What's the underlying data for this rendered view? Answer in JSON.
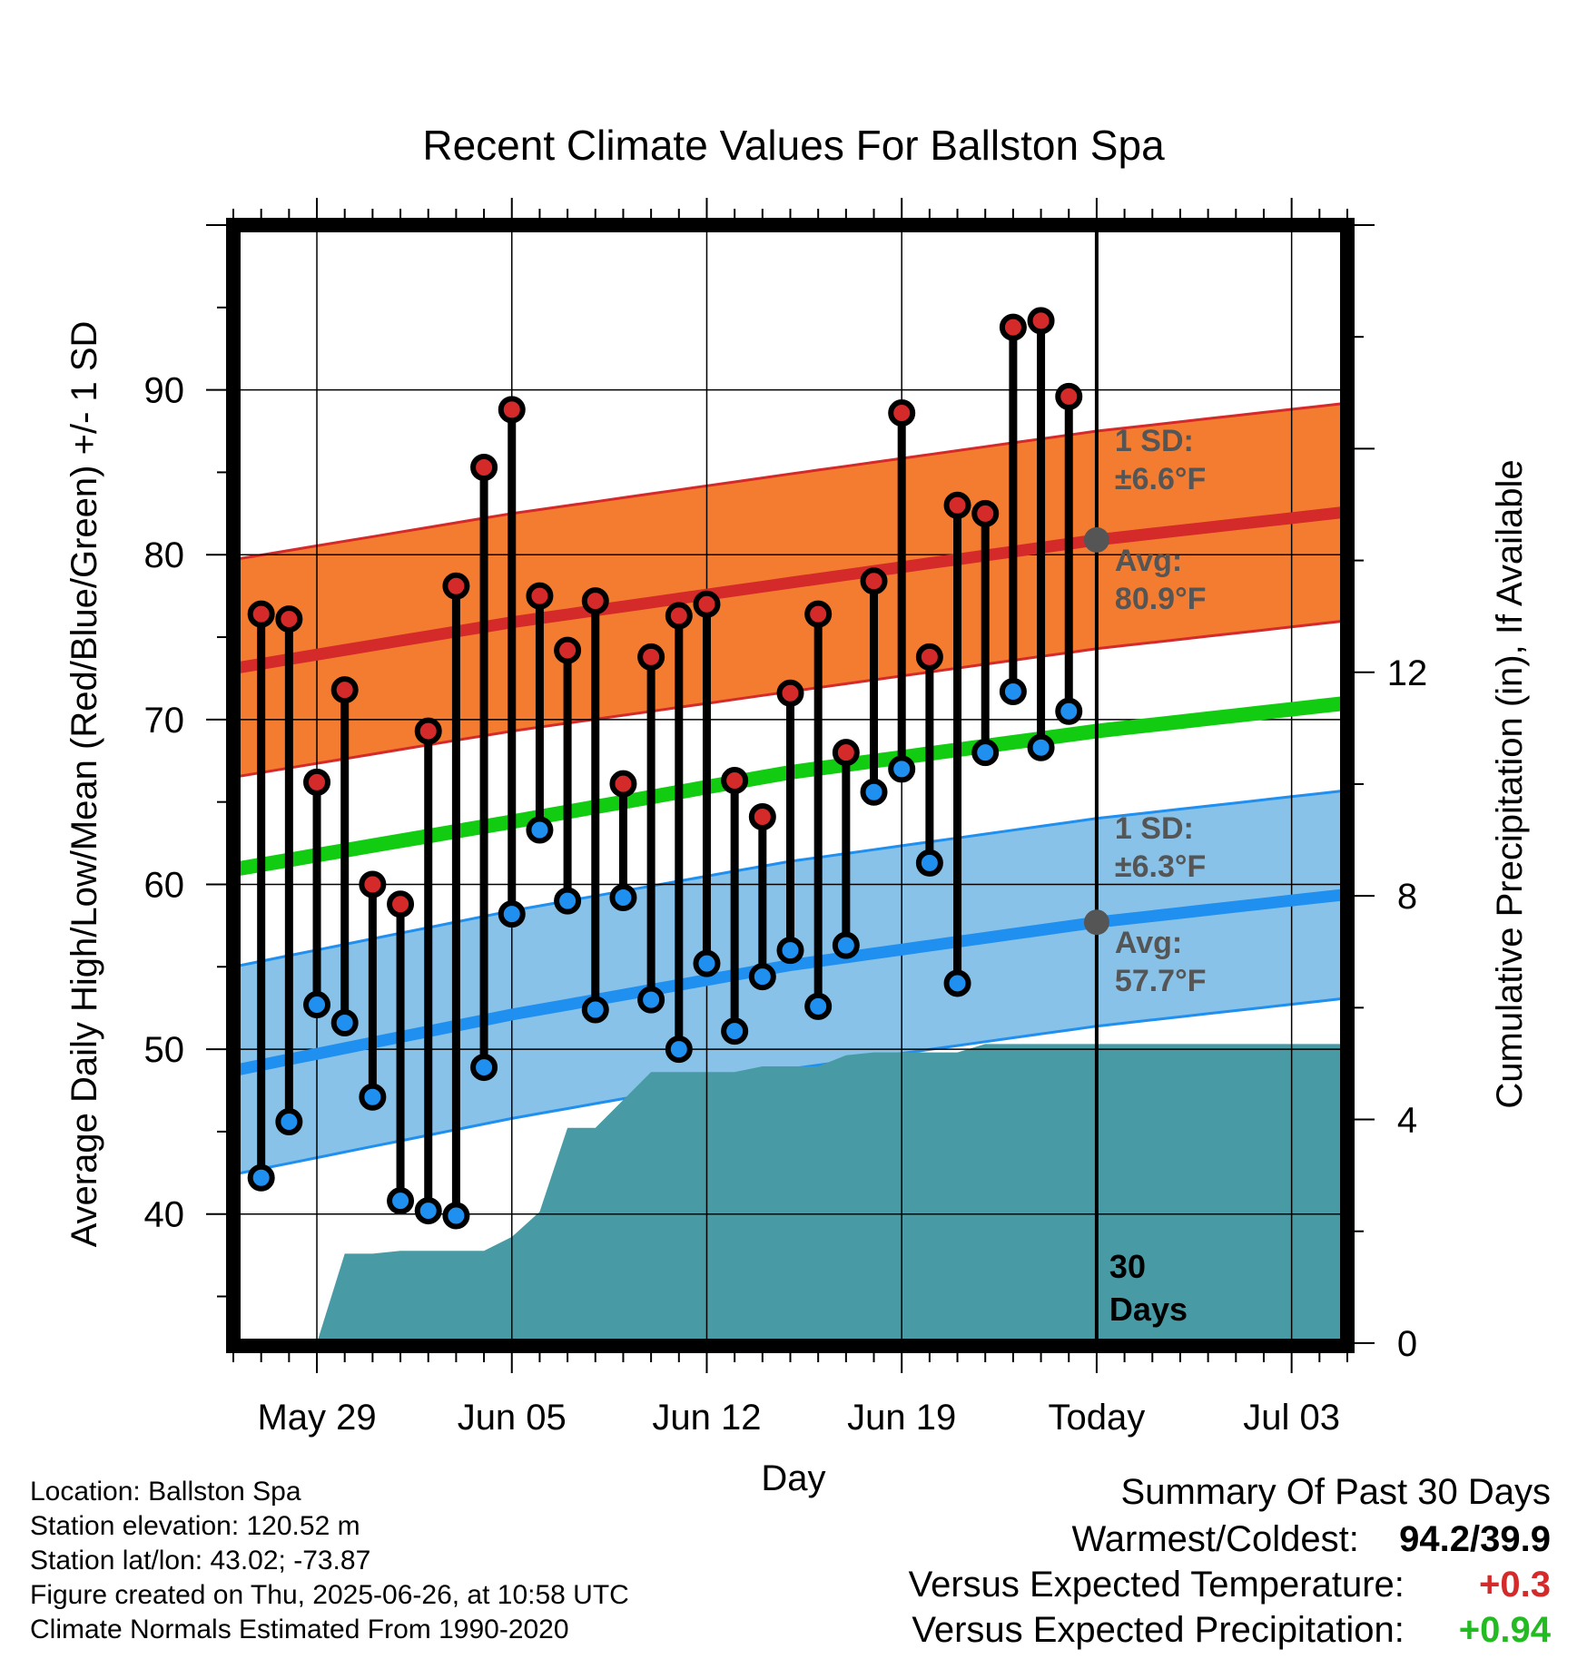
{
  "colors": {
    "high_dot": "#d42a2a",
    "low_dot": "#1f8ff0",
    "high_band": "#f47c30",
    "high_avg_line": "#d42a2a",
    "low_band": "#88c2e8",
    "low_avg_line": "#1f8ff0",
    "mean_line": "#11cc11",
    "precip_fill": "#489ba4",
    "annotation": "#555555",
    "positive_temp": "#d42a2a",
    "positive_precip": "#22bb22"
  },
  "chart_data": {
    "type": "line",
    "title": "Recent Climate Values For Ballston Spa",
    "xlabel": "Day",
    "ylabel_left": "Average Daily High/Low/Mean (Red/Blue/Green) +/- 1 SD",
    "ylabel_right": "Cumulative Precipitation (in), If Available",
    "x_start": "2025-05-26",
    "x_end": "2025-07-05",
    "x_ticks": [
      {
        "date": "2025-05-29",
        "label": "May 29"
      },
      {
        "date": "2025-06-05",
        "label": "Jun 05"
      },
      {
        "date": "2025-06-12",
        "label": "Jun 12"
      },
      {
        "date": "2025-06-19",
        "label": "Jun 19"
      },
      {
        "date": "2025-06-26",
        "label": "Today"
      },
      {
        "date": "2025-07-03",
        "label": "Jul 03"
      }
    ],
    "ylim": [
      32,
      100
    ],
    "y_ticks": [
      40,
      50,
      60,
      70,
      80,
      90
    ],
    "y2lim": [
      -0.05,
      20
    ],
    "y2_ticks": [
      0,
      4,
      8,
      12
    ],
    "grid": true,
    "today_date": "2025-06-26",
    "period_label": [
      "30",
      "Days"
    ],
    "daily": {
      "dates": [
        "2025-05-27",
        "2025-05-28",
        "2025-05-29",
        "2025-05-30",
        "2025-05-31",
        "2025-06-01",
        "2025-06-02",
        "2025-06-03",
        "2025-06-04",
        "2025-06-05",
        "2025-06-06",
        "2025-06-07",
        "2025-06-08",
        "2025-06-09",
        "2025-06-10",
        "2025-06-11",
        "2025-06-12",
        "2025-06-13",
        "2025-06-14",
        "2025-06-15",
        "2025-06-16",
        "2025-06-17",
        "2025-06-18",
        "2025-06-19",
        "2025-06-20",
        "2025-06-21",
        "2025-06-22",
        "2025-06-23",
        "2025-06-24",
        "2025-06-25"
      ],
      "highs": [
        76.4,
        76.1,
        66.2,
        71.8,
        60.0,
        58.8,
        69.3,
        78.1,
        85.3,
        88.8,
        77.5,
        74.2,
        77.2,
        66.1,
        73.8,
        76.3,
        77.0,
        66.3,
        64.1,
        71.6,
        76.4,
        68.0,
        78.4,
        88.6,
        73.8,
        83.0,
        82.5,
        93.8,
        94.2,
        89.6
      ],
      "lows": [
        42.2,
        45.6,
        52.7,
        51.6,
        47.1,
        40.8,
        40.2,
        39.9,
        48.9,
        58.2,
        63.3,
        59.0,
        52.4,
        59.2,
        53.0,
        50.0,
        55.2,
        51.1,
        54.4,
        56.0,
        52.6,
        56.3,
        65.6,
        67.0,
        61.3,
        54.0,
        68.0,
        71.7,
        68.3,
        70.5
      ]
    },
    "normals": {
      "dates": [
        "2025-05-26",
        "2025-06-05",
        "2025-06-15",
        "2025-06-26",
        "2025-07-05"
      ],
      "high_avg": [
        73.1,
        75.9,
        78.3,
        80.9,
        82.6
      ],
      "high_sd": 6.6,
      "low_avg": [
        48.7,
        52.1,
        55.1,
        57.7,
        59.4
      ],
      "low_sd": 6.3,
      "mean_avg": [
        60.9,
        63.8,
        66.8,
        69.3,
        71.0
      ]
    },
    "precip": {
      "dates": [
        "2025-05-27",
        "2025-05-29",
        "2025-05-30",
        "2025-05-31",
        "2025-06-01",
        "2025-06-02",
        "2025-06-03",
        "2025-06-04",
        "2025-06-05",
        "2025-06-06",
        "2025-06-07",
        "2025-06-08",
        "2025-06-09",
        "2025-06-10",
        "2025-06-11",
        "2025-06-12",
        "2025-06-13",
        "2025-06-14",
        "2025-06-15",
        "2025-06-16",
        "2025-06-17",
        "2025-06-18",
        "2025-06-19",
        "2025-06-20",
        "2025-06-21",
        "2025-06-22",
        "2025-06-23",
        "2025-06-24",
        "2025-06-25",
        "2025-06-26",
        "2025-07-05"
      ],
      "cumulative": [
        0,
        0,
        1.6,
        1.6,
        1.65,
        1.65,
        1.65,
        1.65,
        1.9,
        2.35,
        3.85,
        3.85,
        4.35,
        4.85,
        4.85,
        4.85,
        4.85,
        4.95,
        4.95,
        4.95,
        5.15,
        5.2,
        5.2,
        5.2,
        5.2,
        5.35,
        5.35,
        5.35,
        5.35,
        5.35,
        5.35
      ]
    },
    "annotations": {
      "high_sd_label": "1 SD:",
      "high_sd_value": "±6.6°F",
      "high_avg_label": "Avg:",
      "high_avg_value": "80.9°F",
      "low_sd_label": "1 SD:",
      "low_sd_value": "±6.3°F",
      "low_avg_label": "Avg:",
      "low_avg_value": "57.7°F"
    }
  },
  "info": {
    "location": "Location: Ballston Spa",
    "elevation": "Station elevation: 120.52 m",
    "latlon": "Station lat/lon: 43.02; -73.87",
    "created": "Figure created on Thu, 2025-06-26, at 10:58 UTC",
    "normals": "Climate Normals Estimated From 1990-2020"
  },
  "summary": {
    "heading": "Summary Of Past 30 Days",
    "warmest_coldest_label": "Warmest/Coldest:",
    "warmest_coldest_value": "94.2/39.9",
    "temp_label": "Versus Expected Temperature:",
    "temp_value": "+0.3",
    "precip_label": "Versus Expected Precipitation:",
    "precip_value": "+0.94"
  }
}
